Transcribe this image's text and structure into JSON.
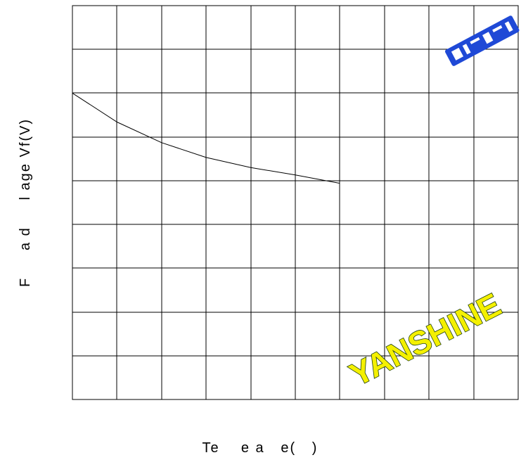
{
  "chart_data": {
    "type": "line",
    "title": "",
    "xlabel": "Te    e a   e(   )",
    "ylabel": "F     a d     l age Vf(V)",
    "xlim": [
      0,
      10
    ],
    "ylim": [
      0,
      9
    ],
    "x_divisions": 10,
    "y_divisions": 9,
    "x_tick_labels": [],
    "y_tick_labels": [],
    "grid": true,
    "legend": "none",
    "series": [
      {
        "x": [
          0,
          1,
          2,
          3,
          4,
          5,
          6
        ],
        "y": [
          7,
          6.34,
          5.87,
          5.53,
          5.3,
          5.13,
          4.94
        ]
      }
    ],
    "colors": {
      "line": "#000000",
      "grid": "#000000",
      "watermark": "#f4f000",
      "logo": "#1f49d6"
    }
  },
  "watermark": {
    "text": "YANSHINE"
  },
  "logo": {
    "icon": "brand-logo-icon"
  }
}
